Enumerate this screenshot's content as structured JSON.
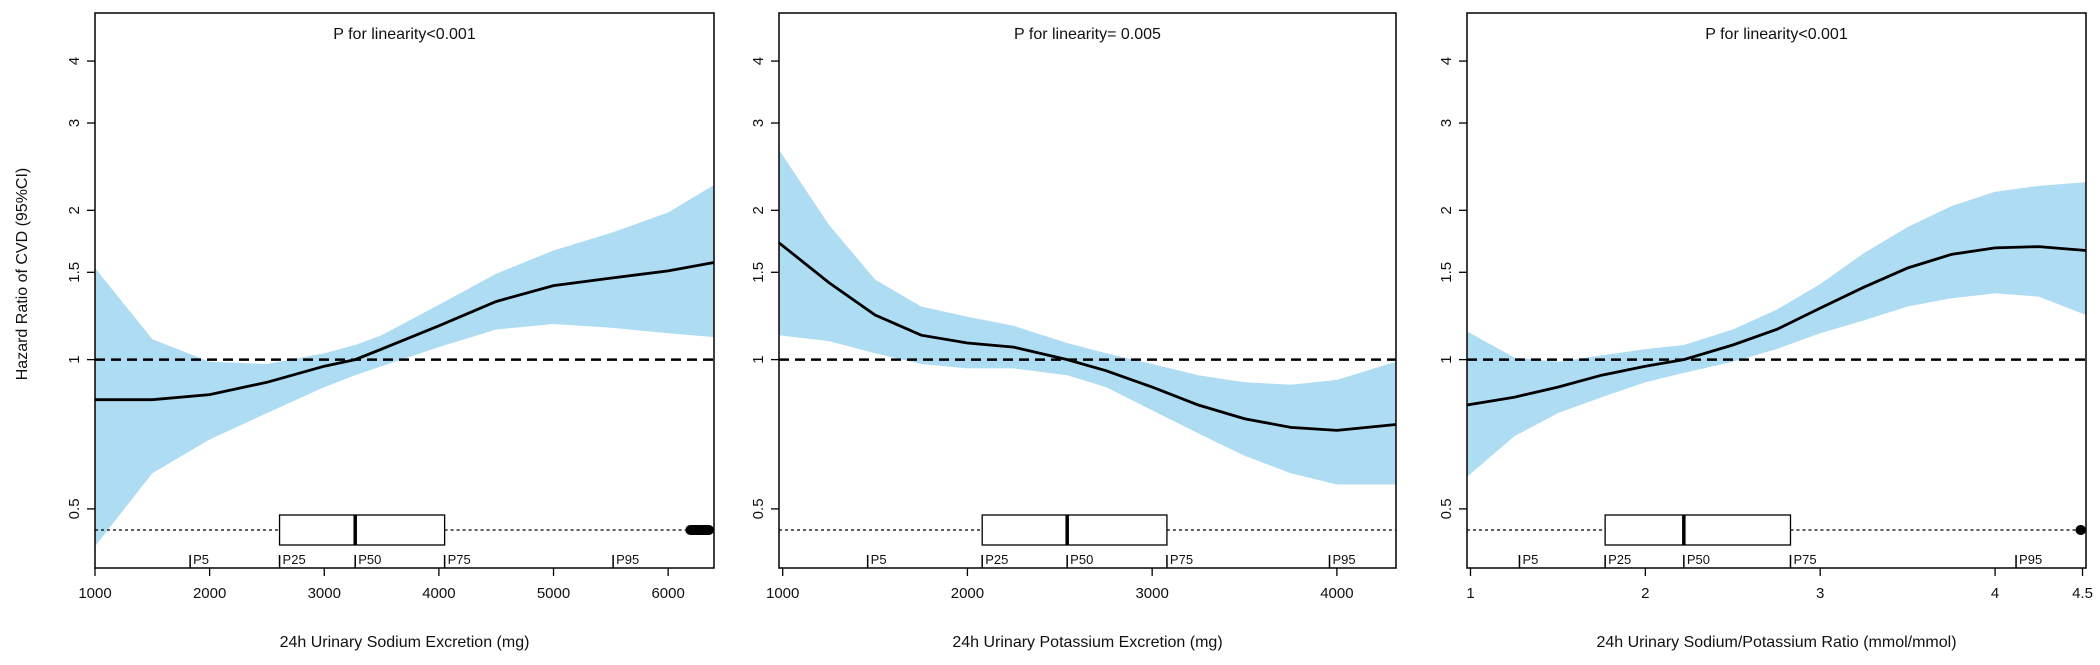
{
  "y_axis_label": "Hazard Ratio of CVD (95%CI)",
  "colors": {
    "band": "#aedcf3",
    "line": "#000000",
    "axis": "#000000"
  },
  "chart_data": [
    {
      "type": "line",
      "title": "",
      "annotation": "P for linearity<0.001",
      "xlabel": "24h Urinary Sodium Excretion (mg)",
      "ylabel": "Hazard Ratio of CVD (95%CI)",
      "y_scale": "log",
      "xlim": [
        1000,
        6400
      ],
      "ylim": [
        0.38,
        5.0
      ],
      "x_ticks": [
        1000,
        2000,
        3000,
        4000,
        5000,
        6000
      ],
      "x_tick_labels": [
        "1000",
        "2000",
        "3000",
        "4000",
        "5000",
        "6000"
      ],
      "y_ticks": [
        0.5,
        1,
        1.5,
        2,
        3,
        4
      ],
      "y_tick_labels": [
        "0.5",
        "1",
        "1.5",
        "2",
        "3",
        "4"
      ],
      "reference_line": 1,
      "series": [
        {
          "name": "Hazard ratio",
          "x": [
            1000,
            1500,
            2000,
            2500,
            3000,
            3270,
            3500,
            4000,
            4500,
            5000,
            5500,
            6000,
            6400
          ],
          "hr": [
            0.83,
            0.83,
            0.85,
            0.9,
            0.97,
            1.0,
            1.05,
            1.17,
            1.31,
            1.41,
            1.46,
            1.51,
            1.57
          ],
          "lower": [
            0.42,
            0.59,
            0.69,
            0.78,
            0.88,
            0.93,
            0.97,
            1.06,
            1.15,
            1.18,
            1.16,
            1.13,
            1.11
          ],
          "upper": [
            1.53,
            1.1,
            0.99,
            0.98,
            1.03,
            1.07,
            1.12,
            1.29,
            1.49,
            1.66,
            1.8,
            1.98,
            2.25
          ]
        }
      ],
      "boxplot": {
        "whisker_min": 1000,
        "q1": 2610,
        "median": 3270,
        "q3": 4050,
        "whisker_max": 6150,
        "outlier_cluster": [
          6150,
          6400
        ]
      },
      "percentiles": [
        {
          "label": "P5",
          "x": 1830
        },
        {
          "label": "P25",
          "x": 2610
        },
        {
          "label": "P50",
          "x": 3270
        },
        {
          "label": "P75",
          "x": 4050
        },
        {
          "label": "P95",
          "x": 5520
        }
      ]
    },
    {
      "type": "line",
      "title": "",
      "annotation": "P for linearity= 0.005",
      "xlabel": "24h Urinary Potassium Excretion (mg)",
      "ylabel": "Hazard Ratio of CVD (95%CI)",
      "y_scale": "log",
      "xlim": [
        980,
        4320
      ],
      "ylim": [
        0.38,
        5.0
      ],
      "x_ticks": [
        1000,
        2000,
        3000,
        4000
      ],
      "x_tick_labels": [
        "1000",
        "2000",
        "3000",
        "4000"
      ],
      "y_ticks": [
        0.5,
        1,
        1.5,
        2,
        3,
        4
      ],
      "y_tick_labels": [
        "0.5",
        "1",
        "1.5",
        "2",
        "3",
        "4"
      ],
      "reference_line": 1,
      "series": [
        {
          "name": "Hazard ratio",
          "x": [
            980,
            1250,
            1500,
            1750,
            2000,
            2250,
            2540,
            2750,
            3000,
            3250,
            3500,
            3750,
            4000,
            4320
          ],
          "hr": [
            1.72,
            1.43,
            1.23,
            1.12,
            1.08,
            1.06,
            1.0,
            0.95,
            0.88,
            0.81,
            0.76,
            0.73,
            0.72,
            0.74
          ],
          "lower": [
            1.12,
            1.09,
            1.03,
            0.98,
            0.96,
            0.96,
            0.93,
            0.88,
            0.79,
            0.71,
            0.64,
            0.59,
            0.56,
            0.56
          ],
          "upper": [
            2.65,
            1.87,
            1.45,
            1.28,
            1.22,
            1.17,
            1.08,
            1.03,
            0.98,
            0.93,
            0.9,
            0.89,
            0.91,
            0.99
          ]
        }
      ],
      "boxplot": {
        "whisker_min": 980,
        "q1": 2080,
        "median": 2540,
        "q3": 3080,
        "whisker_max": 4320,
        "outlier_cluster": []
      },
      "percentiles": [
        {
          "label": "P5",
          "x": 1460
        },
        {
          "label": "P25",
          "x": 2080
        },
        {
          "label": "P50",
          "x": 2540
        },
        {
          "label": "P75",
          "x": 3080
        },
        {
          "label": "P95",
          "x": 3960
        }
      ]
    },
    {
      "type": "line",
      "title": "",
      "annotation": "P for linearity<0.001",
      "xlabel": "24h Urinary Sodium/Potassium Ratio (mmol/mmol)",
      "ylabel": "Hazard Ratio of CVD (95%CI)",
      "y_scale": "log",
      "xlim": [
        0.98,
        4.52
      ],
      "ylim": [
        0.38,
        5.0
      ],
      "x_ticks": [
        1,
        2,
        3,
        4,
        4.5
      ],
      "x_tick_labels": [
        "1",
        "2",
        "3",
        "4",
        "4.5"
      ],
      "y_ticks": [
        0.5,
        1,
        1.5,
        2,
        3,
        4
      ],
      "y_tick_labels": [
        "0.5",
        "1",
        "1.5",
        "2",
        "3",
        "4"
      ],
      "reference_line": 1,
      "series": [
        {
          "name": "Hazard ratio",
          "x": [
            0.98,
            1.25,
            1.5,
            1.75,
            2.0,
            2.22,
            2.5,
            2.75,
            3.0,
            3.25,
            3.5,
            3.75,
            4.0,
            4.25,
            4.52
          ],
          "hr": [
            0.81,
            0.84,
            0.88,
            0.93,
            0.97,
            1.0,
            1.07,
            1.15,
            1.27,
            1.4,
            1.53,
            1.63,
            1.68,
            1.69,
            1.66
          ],
          "lower": [
            0.58,
            0.7,
            0.78,
            0.84,
            0.9,
            0.94,
            0.99,
            1.05,
            1.13,
            1.2,
            1.28,
            1.33,
            1.36,
            1.34,
            1.23
          ],
          "upper": [
            1.14,
            1.01,
            0.99,
            1.02,
            1.05,
            1.07,
            1.15,
            1.26,
            1.42,
            1.64,
            1.85,
            2.04,
            2.18,
            2.24,
            2.28
          ]
        }
      ],
      "boxplot": {
        "whisker_min": 0.98,
        "q1": 1.77,
        "median": 2.22,
        "q3": 2.83,
        "whisker_max": 4.46,
        "outlier_cluster": [
          4.46,
          4.52
        ]
      },
      "percentiles": [
        {
          "label": "P5",
          "x": 1.28
        },
        {
          "label": "P25",
          "x": 1.77
        },
        {
          "label": "P50",
          "x": 2.22
        },
        {
          "label": "P75",
          "x": 2.83
        },
        {
          "label": "P95",
          "x": 4.12
        }
      ]
    }
  ]
}
